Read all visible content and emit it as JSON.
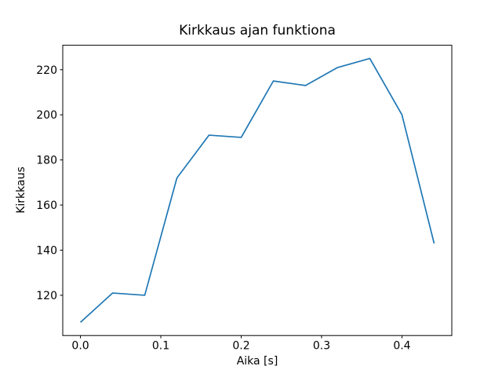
{
  "figure": {
    "background": "#ffffff",
    "axis_color": "#000000",
    "text_color": "#000000"
  },
  "chart_data": {
    "type": "line",
    "title": "Kirkkaus ajan funktiona",
    "xlabel": "Aika [s]",
    "ylabel": "Kirkkaus",
    "line_color": "#1f77b4",
    "x": [
      0.0,
      0.04,
      0.08,
      0.12,
      0.16,
      0.2,
      0.24,
      0.28,
      0.32,
      0.36,
      0.4,
      0.44
    ],
    "y": [
      108,
      121,
      120,
      172,
      191,
      190,
      215,
      213,
      221,
      225,
      200,
      143
    ],
    "xlim": [
      -0.022,
      0.462
    ],
    "ylim": [
      102.15,
      230.85
    ],
    "xticks": [
      0.0,
      0.1,
      0.2,
      0.3,
      0.4
    ],
    "xtick_labels": [
      "0.0",
      "0.1",
      "0.2",
      "0.3",
      "0.4"
    ],
    "yticks": [
      120,
      140,
      160,
      180,
      200,
      220
    ],
    "ytick_labels": [
      "120",
      "140",
      "160",
      "180",
      "200",
      "220"
    ],
    "grid": false,
    "legend": null
  }
}
